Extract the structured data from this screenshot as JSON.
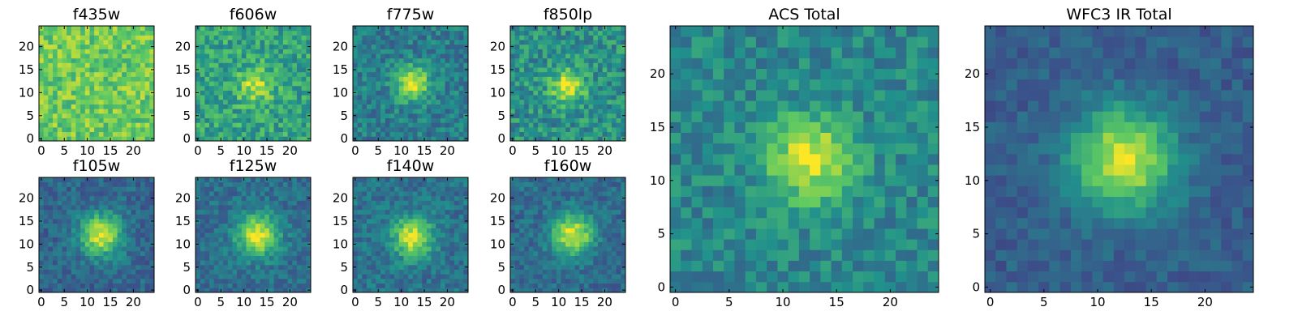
{
  "chart_data": {
    "type": "heatmap",
    "grid_size": 25,
    "colormap": "viridis",
    "colormap_stops": [
      "#440154",
      "#3b528b",
      "#21918c",
      "#5ec962",
      "#fde725"
    ],
    "axis_range": [
      0,
      24
    ],
    "panels": [
      {
        "title": "f435w",
        "xticks": [
          0,
          5,
          10,
          15,
          20
        ],
        "yticks": [
          0,
          5,
          10,
          15,
          20
        ],
        "center": [
          12,
          12
        ],
        "peak": 0.0,
        "sigma": 2.5,
        "base": 0.76,
        "noise": 0.16,
        "seed": 11
      },
      {
        "title": "f606w",
        "xticks": [
          0,
          5,
          10,
          15,
          20
        ],
        "yticks": [
          0,
          5,
          10,
          15,
          20
        ],
        "center": [
          12.5,
          11.5
        ],
        "peak": 0.32,
        "sigma": 2.6,
        "base": 0.58,
        "noise": 0.17,
        "seed": 23
      },
      {
        "title": "f775w",
        "xticks": [
          0,
          5,
          10,
          15,
          20
        ],
        "yticks": [
          0,
          5,
          10,
          15,
          20
        ],
        "center": [
          12.5,
          12
        ],
        "peak": 0.55,
        "sigma": 2.6,
        "base": 0.42,
        "noise": 0.14,
        "seed": 37
      },
      {
        "title": "f850lp",
        "xticks": [
          0,
          5,
          10,
          15,
          20
        ],
        "yticks": [
          0,
          5,
          10,
          15,
          20
        ],
        "center": [
          12,
          11.5
        ],
        "peak": 0.45,
        "sigma": 2.6,
        "base": 0.5,
        "noise": 0.17,
        "seed": 41
      },
      {
        "title": "f105w",
        "xticks": [
          0,
          5,
          10,
          15,
          20
        ],
        "yticks": [
          0,
          5,
          10,
          15,
          20
        ],
        "center": [
          13,
          12
        ],
        "peak": 0.62,
        "sigma": 3.2,
        "base": 0.33,
        "noise": 0.11,
        "seed": 53
      },
      {
        "title": "f125w",
        "xticks": [
          0,
          5,
          10,
          15,
          20
        ],
        "yticks": [
          0,
          5,
          10,
          15,
          20
        ],
        "center": [
          13,
          12
        ],
        "peak": 0.6,
        "sigma": 3.2,
        "base": 0.36,
        "noise": 0.11,
        "seed": 67
      },
      {
        "title": "f140w",
        "xticks": [
          0,
          5,
          10,
          15,
          20
        ],
        "yticks": [
          0,
          5,
          10,
          15,
          20
        ],
        "center": [
          12.5,
          11.5
        ],
        "peak": 0.58,
        "sigma": 3.0,
        "base": 0.38,
        "noise": 0.12,
        "seed": 71
      },
      {
        "title": "f160w",
        "xticks": [
          0,
          5,
          10,
          15,
          20
        ],
        "yticks": [
          0,
          5,
          10,
          15,
          20
        ],
        "center": [
          13,
          12
        ],
        "peak": 0.62,
        "sigma": 3.1,
        "base": 0.35,
        "noise": 0.11,
        "seed": 83
      },
      {
        "title": "ACS Total",
        "xticks": [
          0,
          5,
          10,
          15,
          20
        ],
        "yticks": [
          0,
          5,
          10,
          15,
          20
        ],
        "center": [
          12.5,
          12
        ],
        "peak": 0.5,
        "sigma": 2.8,
        "base": 0.46,
        "noise": 0.13,
        "seed": 97
      },
      {
        "title": "WFC3 IR Total",
        "xticks": [
          0,
          5,
          10,
          15,
          20
        ],
        "yticks": [
          0,
          5,
          10,
          15,
          20
        ],
        "center": [
          12.5,
          12
        ],
        "peak": 0.65,
        "sigma": 3.3,
        "base": 0.3,
        "noise": 0.08,
        "seed": 101
      }
    ]
  }
}
